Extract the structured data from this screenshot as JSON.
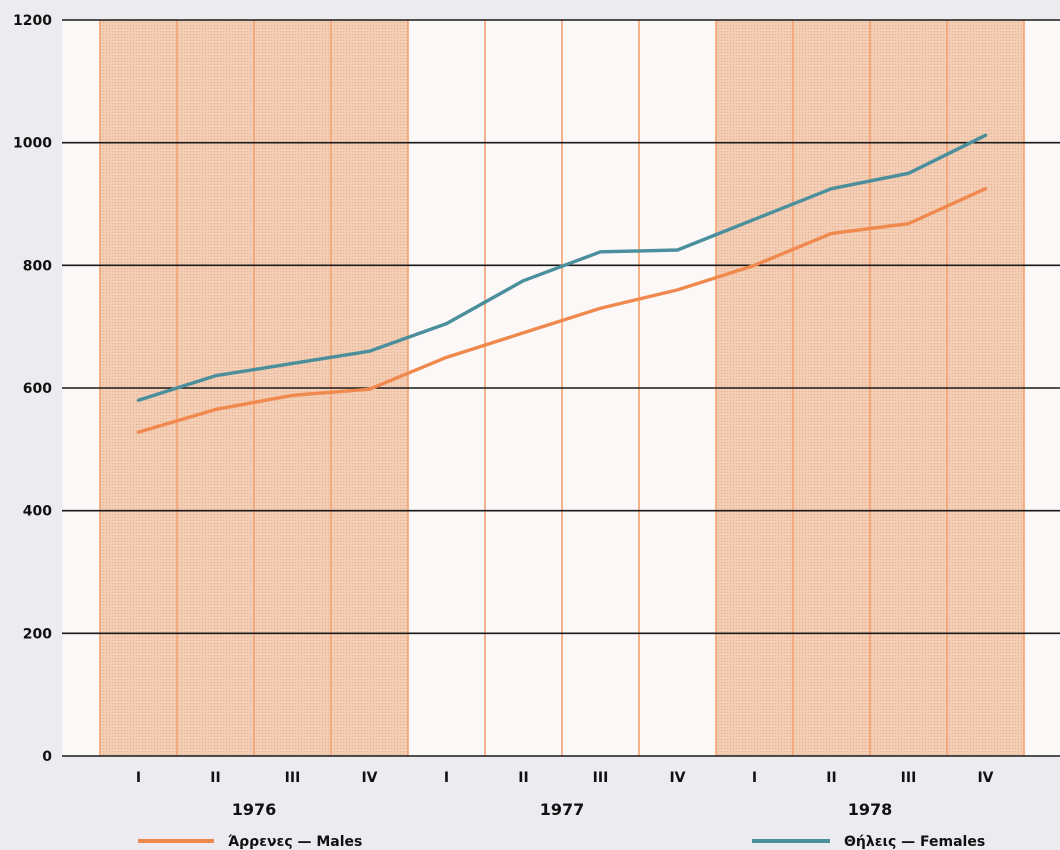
{
  "chart_data": {
    "type": "line",
    "title": "",
    "xlabel": "",
    "ylabel": "",
    "ylim": [
      0,
      1200
    ],
    "yticks": [
      "0",
      "200",
      "400",
      "600",
      "800",
      "1000",
      "1200"
    ],
    "quarters": [
      "I",
      "II",
      "III",
      "IV",
      "I",
      "II",
      "III",
      "IV",
      "I",
      "II",
      "III",
      "IV"
    ],
    "years": [
      "1976",
      "1977",
      "1978"
    ],
    "grid": true,
    "series": [
      {
        "name": "Άρρενες — Males",
        "color": "#f0894e",
        "values": [
          528,
          565,
          588,
          598,
          650,
          690,
          730,
          760,
          800,
          852,
          868,
          925
        ]
      },
      {
        "name": "Θήλεις — Females",
        "color": "#4b8f9c",
        "values": [
          580,
          620,
          640,
          660,
          705,
          775,
          822,
          825,
          875,
          925,
          950,
          1012
        ]
      }
    ],
    "shading": {
      "shaded_years": [
        "1976",
        "1978"
      ],
      "band_color": "#f3cdb4",
      "line_color": "#f2a270"
    },
    "legend_position": "bottom"
  }
}
